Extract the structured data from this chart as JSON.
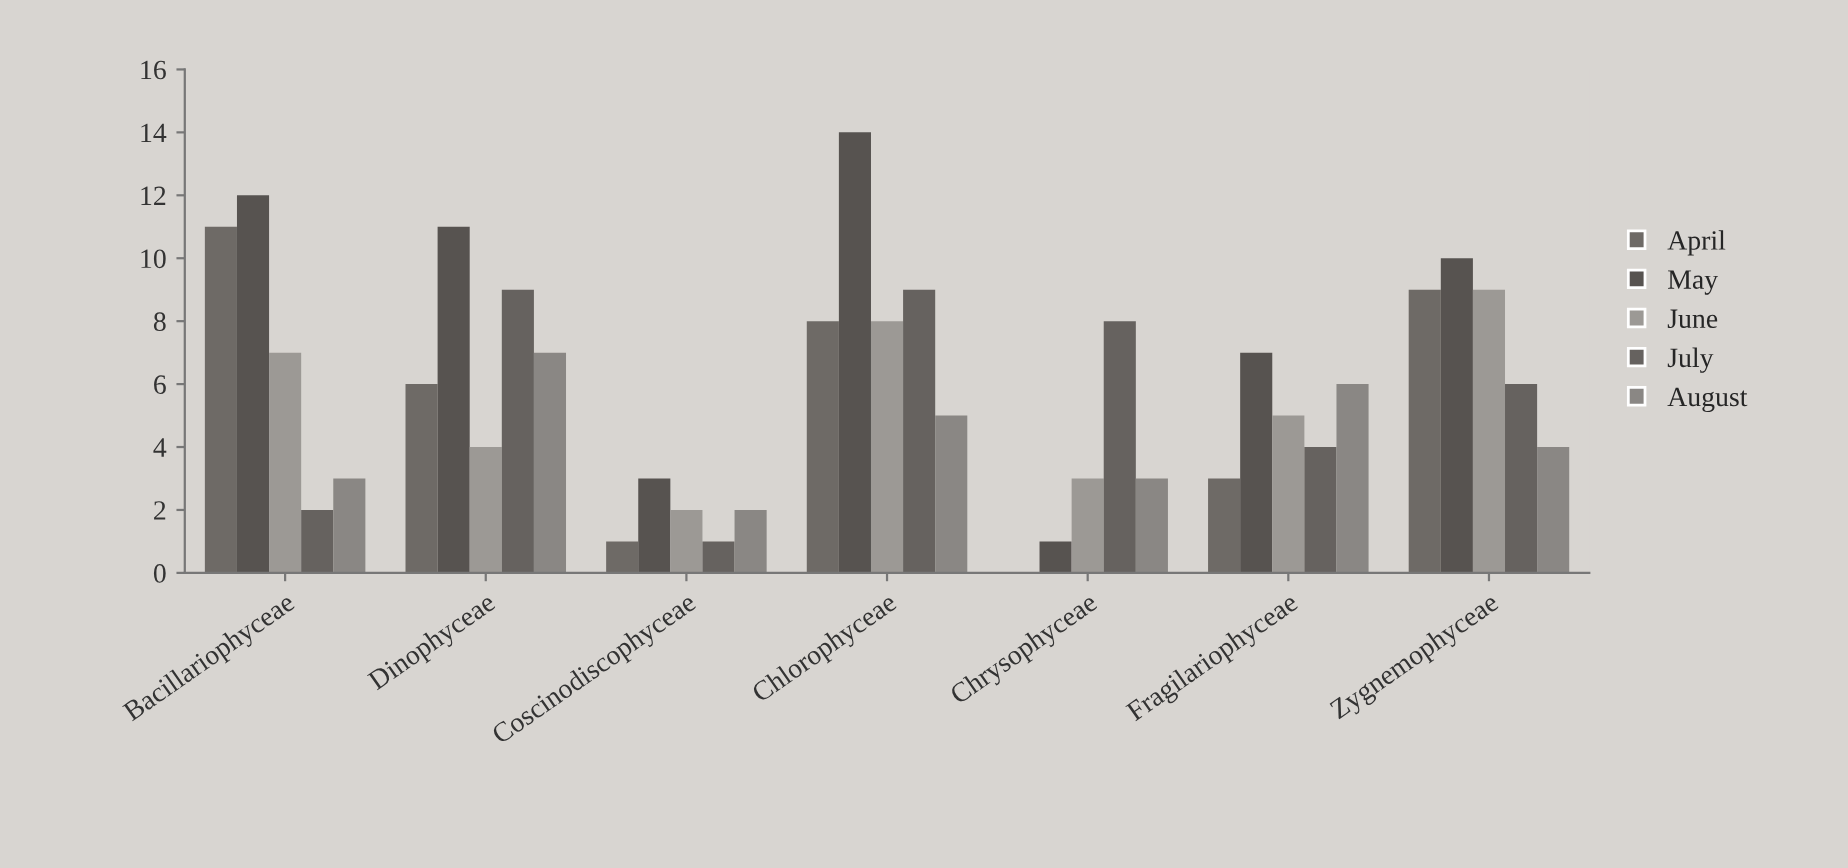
{
  "chart_data": {
    "type": "bar",
    "categories": [
      "Bacillariophyceae",
      "Dinophyceae",
      "Coscinodiscophyceae",
      "Chlorophyceae",
      "Chrysophyceae",
      "Fragilariophyceae",
      "Zygnemophyceae"
    ],
    "series": [
      {
        "name": "April",
        "color": "#6e6a66",
        "values": [
          11,
          6,
          1,
          8,
          0,
          3,
          9
        ]
      },
      {
        "name": "May",
        "color": "#575350",
        "values": [
          12,
          11,
          3,
          14,
          1,
          7,
          10
        ]
      },
      {
        "name": "June",
        "color": "#9c9995",
        "values": [
          7,
          4,
          2,
          8,
          3,
          5,
          9
        ]
      },
      {
        "name": "July",
        "color": "#66625f",
        "values": [
          2,
          9,
          1,
          9,
          8,
          4,
          6
        ]
      },
      {
        "name": "August",
        "color": "#8a8784",
        "values": [
          3,
          7,
          2,
          5,
          3,
          6,
          4
        ]
      }
    ],
    "ylim": [
      0,
      16
    ],
    "yticks": [
      0,
      2,
      4,
      6,
      8,
      10,
      12,
      14,
      16
    ],
    "grid": false,
    "legend": "right"
  }
}
